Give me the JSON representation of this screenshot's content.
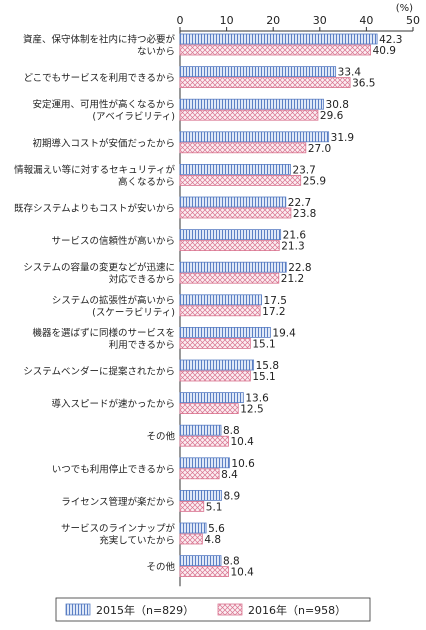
{
  "chart_data": {
    "type": "bar",
    "orientation": "horizontal",
    "unit_label": "(%)",
    "xlim": [
      0,
      50
    ],
    "xticks": [
      0,
      10,
      20,
      30,
      40,
      50
    ],
    "grid": false,
    "legend_position": "bottom",
    "categories": [
      [
        "資産、保守体制を社内に持つ必要が",
        "ないから"
      ],
      [
        "どこでもサービスを利用できるから"
      ],
      [
        "安定運用、可用性が高くなるから",
        "(アベイラビリティ)"
      ],
      [
        "初期導入コストが安価だったから"
      ],
      [
        "情報漏えい等に対するセキュリティが",
        "高くなるから"
      ],
      [
        "既存システムよりもコストが安いから"
      ],
      [
        "サービスの信頼性が高いから"
      ],
      [
        "システムの容量の変更などが迅速に",
        "対応できるから"
      ],
      [
        "システムの拡張性が高いから",
        "(スケーラビリティ)"
      ],
      [
        "機器を選ばずに同様のサービスを",
        "利用できるから"
      ],
      [
        "システムベンダーに提案されたから"
      ],
      [
        "導入スピードが速かったから"
      ],
      [
        "その他"
      ],
      [
        "いつでも利用停止できるから"
      ],
      [
        "ライセンス管理が楽だから"
      ],
      [
        "サービスのラインナップが",
        "充実していたから"
      ],
      [
        "その他"
      ]
    ],
    "series": [
      {
        "name": "2015年（n=829）",
        "pattern": "vertical-stripes",
        "color": "#5b7fc4",
        "fill": "#dfe8f7",
        "values": [
          42.3,
          33.4,
          30.8,
          31.9,
          23.7,
          22.7,
          21.6,
          22.8,
          17.5,
          19.4,
          15.8,
          13.6,
          8.8,
          10.6,
          8.9,
          5.6,
          8.8
        ]
      },
      {
        "name": "2016年（n=958）",
        "pattern": "crosshatch",
        "color": "#d9738f",
        "fill": "#fbeef2",
        "values": [
          40.9,
          36.5,
          29.6,
          27.0,
          25.9,
          23.8,
          21.3,
          21.2,
          17.2,
          15.1,
          15.1,
          12.5,
          10.4,
          8.4,
          5.1,
          4.8,
          10.4
        ]
      }
    ]
  }
}
